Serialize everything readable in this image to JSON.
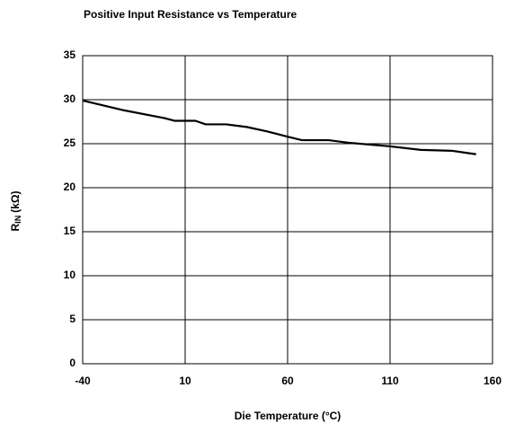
{
  "chart_data": {
    "type": "line",
    "title": "Positive Input Resistance vs Temperature",
    "x_label": "Die Temperature (°C)",
    "y_label": [
      "R",
      "IN",
      "(kΩ)"
    ],
    "x": [
      -40,
      -20,
      0,
      5,
      15,
      20,
      30,
      40,
      50,
      60,
      67,
      80,
      90,
      110,
      125,
      140,
      152
    ],
    "series": [
      {
        "color": "#000000",
        "values": [
          29.9,
          28.8,
          27.9,
          27.6,
          27.6,
          27.2,
          27.2,
          26.9,
          26.4,
          25.8,
          25.4,
          25.4,
          25.1,
          24.7,
          24.3,
          24.2,
          23.8
        ]
      }
    ],
    "xlim": [
      -40,
      160
    ],
    "xticks": [
      -40,
      10,
      60,
      110,
      160
    ],
    "ylim": [
      0,
      35
    ],
    "yticks": [
      0,
      5,
      10,
      15,
      20,
      25,
      30,
      35
    ],
    "grid": true
  }
}
